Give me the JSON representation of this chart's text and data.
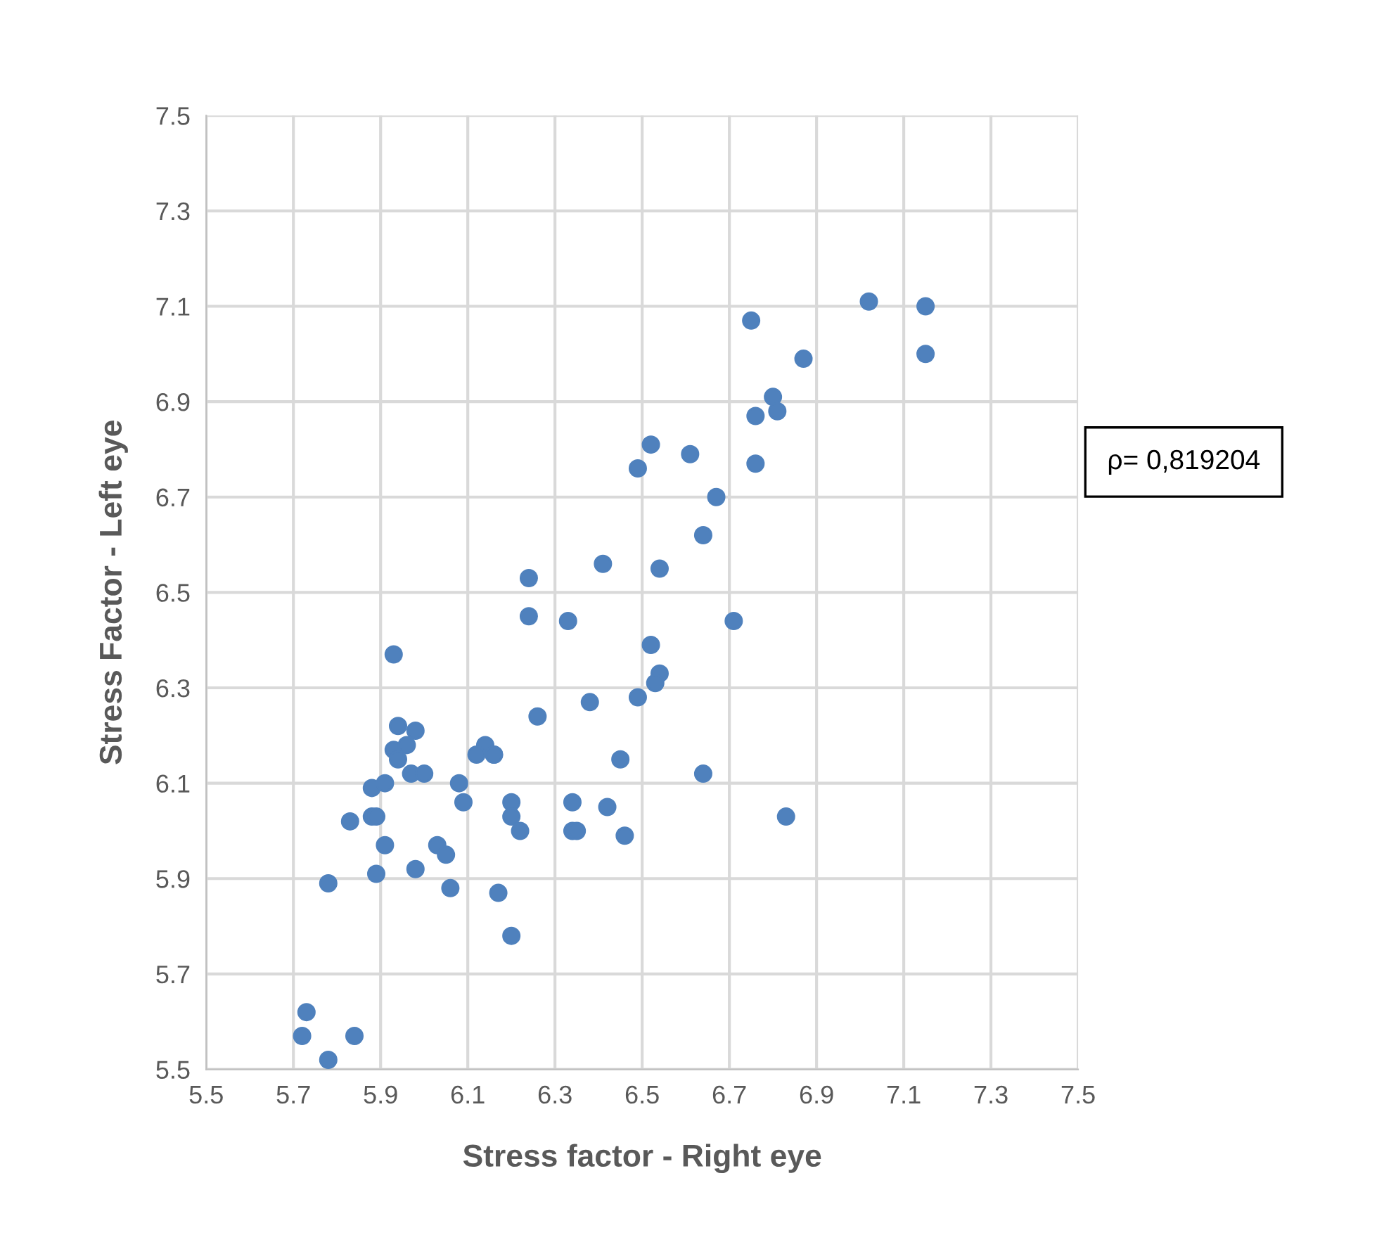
{
  "chart_data": {
    "type": "scatter",
    "xlabel": "Stress factor - Right eye",
    "ylabel": "Stress Factor - Left eye",
    "annotations": [
      "ρ= 0,819204"
    ],
    "xlim": [
      5.5,
      7.5
    ],
    "xticks": [
      5.5,
      5.7,
      5.9,
      6.1,
      6.3,
      6.5,
      6.7,
      6.9,
      7.1,
      7.3,
      7.5
    ],
    "ylim": [
      5.5,
      7.5
    ],
    "yticks": [
      5.5,
      5.7,
      5.9,
      6.1,
      6.3,
      6.5,
      6.7,
      6.9,
      7.1,
      7.3,
      7.5
    ],
    "grid": true,
    "marker": "circle",
    "legend": false,
    "series": [
      {
        "color": "#4f81bd",
        "x": [
          7.02,
          7.15,
          7.15,
          6.75,
          6.87,
          6.8,
          6.81,
          6.76,
          6.76,
          6.52,
          6.49,
          6.61,
          6.67,
          6.64,
          6.54,
          6.41,
          6.24,
          6.24,
          6.33,
          6.71,
          6.52,
          6.54,
          6.53,
          6.49,
          6.38,
          6.26,
          5.93,
          5.94,
          5.98,
          5.93,
          5.96,
          5.94,
          6.14,
          6.16,
          6.12,
          6.16,
          5.97,
          6.0,
          6.08,
          6.09,
          5.88,
          5.91,
          6.45,
          6.64,
          6.2,
          6.2,
          6.22,
          6.34,
          6.42,
          6.34,
          6.35,
          6.46,
          6.83,
          5.88,
          5.89,
          5.83,
          5.91,
          6.03,
          6.05,
          5.98,
          5.89,
          5.78,
          6.06,
          6.17,
          6.2,
          5.73,
          5.72,
          5.84,
          5.78
        ],
        "values": [
          7.11,
          7.1,
          7.0,
          7.07,
          6.99,
          6.91,
          6.88,
          6.87,
          6.77,
          6.81,
          6.76,
          6.79,
          6.7,
          6.62,
          6.55,
          6.56,
          6.53,
          6.45,
          6.44,
          6.44,
          6.39,
          6.33,
          6.31,
          6.28,
          6.27,
          6.24,
          6.37,
          6.22,
          6.21,
          6.17,
          6.18,
          6.15,
          6.18,
          6.16,
          6.16,
          6.16,
          6.12,
          6.12,
          6.1,
          6.06,
          6.09,
          6.1,
          6.15,
          6.12,
          6.06,
          6.03,
          6.0,
          6.06,
          6.05,
          6.0,
          6.0,
          5.99,
          6.03,
          6.03,
          6.03,
          6.02,
          5.97,
          5.97,
          5.95,
          5.92,
          5.91,
          5.89,
          5.88,
          5.87,
          5.78,
          5.62,
          5.57,
          5.57,
          5.52
        ]
      }
    ]
  }
}
